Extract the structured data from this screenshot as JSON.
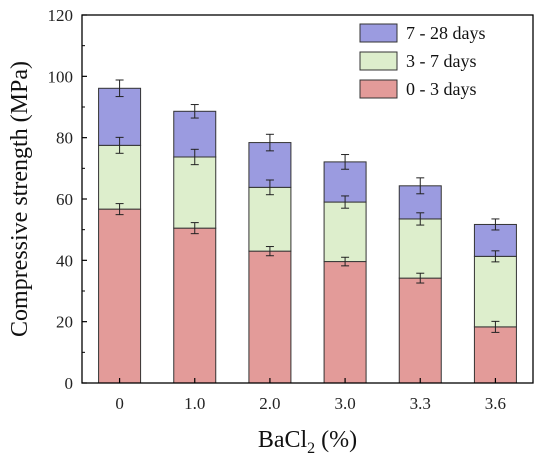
{
  "chart_data": {
    "type": "bar",
    "stacked": true,
    "xlabel_main": "BaCl",
    "xlabel_sub": "2",
    "xlabel_tail": " (%)",
    "ylabel": "Compressive strength (MPa)",
    "categories": [
      "0",
      "1.0",
      "2.0",
      "3.0",
      "3.3",
      "3.6"
    ],
    "ylim": [
      0,
      120
    ],
    "yticks": [
      "0",
      "20",
      "40",
      "60",
      "80",
      "100",
      "120"
    ],
    "grid": false,
    "legend_position": "top-right",
    "series": [
      {
        "name": "0 - 3 days",
        "color": "#e39b99",
        "values": [
          56.7,
          50.5,
          43.0,
          39.6,
          34.2,
          18.3
        ],
        "errors": [
          1.8,
          1.8,
          1.5,
          1.4,
          1.6,
          1.8
        ]
      },
      {
        "name": "3 - 7 days",
        "color": "#ddeecc",
        "values": [
          20.8,
          23.2,
          20.8,
          19.4,
          19.3,
          23.0
        ],
        "errors": [
          2.6,
          2.5,
          2.4,
          2.0,
          2.0,
          1.8
        ]
      },
      {
        "name": "7 - 28 days",
        "color": "#9b9be0",
        "values": [
          18.6,
          14.9,
          14.6,
          13.1,
          10.8,
          10.4
        ],
        "errors": [
          2.7,
          2.2,
          2.7,
          2.4,
          2.6,
          1.8
        ]
      }
    ],
    "legend_order": [
      "7 - 28 days",
      "3 - 7 days",
      "0 - 3 days"
    ]
  }
}
